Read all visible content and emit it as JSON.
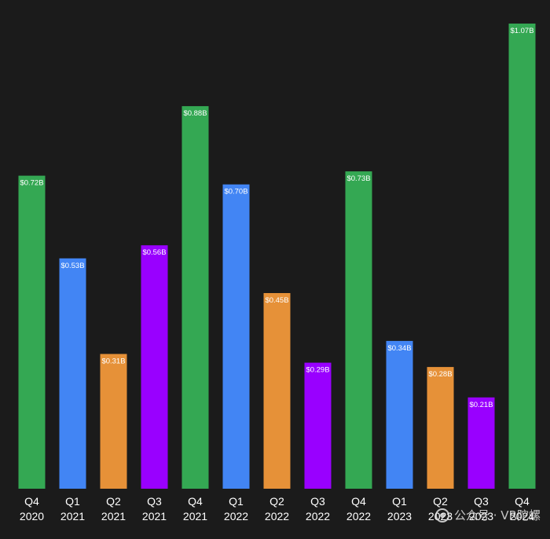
{
  "chart_data": {
    "type": "bar",
    "title": "",
    "xlabel": "",
    "ylabel": "",
    "ylim": [
      0,
      1.07
    ],
    "grid": false,
    "categories": [
      {
        "quarter": "Q4",
        "year": "2020"
      },
      {
        "quarter": "Q1",
        "year": "2021"
      },
      {
        "quarter": "Q2",
        "year": "2021"
      },
      {
        "quarter": "Q3",
        "year": "2021"
      },
      {
        "quarter": "Q4",
        "year": "2021"
      },
      {
        "quarter": "Q1",
        "year": "2022"
      },
      {
        "quarter": "Q2",
        "year": "2022"
      },
      {
        "quarter": "Q3",
        "year": "2022"
      },
      {
        "quarter": "Q4",
        "year": "2022"
      },
      {
        "quarter": "Q1",
        "year": "2023"
      },
      {
        "quarter": "Q2",
        "year": "2023"
      },
      {
        "quarter": "Q3",
        "year": "2023"
      },
      {
        "quarter": "Q4",
        "year": "2024"
      }
    ],
    "values": [
      0.72,
      0.53,
      0.31,
      0.56,
      0.88,
      0.7,
      0.45,
      0.29,
      0.73,
      0.34,
      0.28,
      0.21,
      1.07
    ],
    "value_labels": [
      "$0.72B",
      "$0.53B",
      "$0.31B",
      "$0.56B",
      "$0.88B",
      "$0.70B",
      "$0.45B",
      "$0.29B",
      "$0.73B",
      "$0.34B",
      "$0.28B",
      "$0.21B",
      "$1.07B"
    ],
    "quarter_colors": {
      "Q1": "#4285f4",
      "Q2": "#e69138",
      "Q3": "#9900ff",
      "Q4": "#34a853"
    },
    "background": "#1b1b1b",
    "text_color": "#ffffff"
  },
  "watermark": {
    "text": "公众号 · VR陀螺",
    "icon": "wechat-icon"
  }
}
